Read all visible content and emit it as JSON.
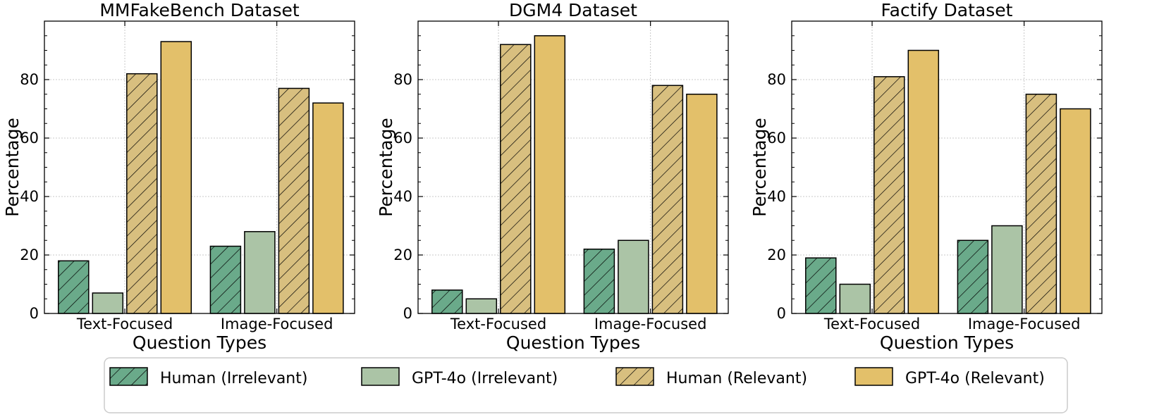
{
  "chart_data": [
    {
      "type": "bar",
      "title": "MMFakeBench Dataset",
      "xlabel": "Question Types",
      "ylabel": "Percentage",
      "categories": [
        "Text-Focused",
        "Image-Focused"
      ],
      "ylim": [
        0,
        100
      ],
      "yticks": [
        "0",
        "20",
        "40",
        "60",
        "80"
      ],
      "series": [
        {
          "name": "Human (Irrelevant)",
          "values": [
            18,
            23
          ]
        },
        {
          "name": "GPT-4o (Irrelevant)",
          "values": [
            7,
            28
          ]
        },
        {
          "name": "Human (Relevant)",
          "values": [
            82,
            77
          ]
        },
        {
          "name": "GPT-4o (Relevant)",
          "values": [
            93,
            72
          ]
        }
      ]
    },
    {
      "type": "bar",
      "title": "DGM4 Dataset",
      "xlabel": "Question Types",
      "ylabel": "Percentage",
      "categories": [
        "Text-Focused",
        "Image-Focused"
      ],
      "ylim": [
        0,
        100
      ],
      "yticks": [
        "0",
        "20",
        "40",
        "60",
        "80"
      ],
      "series": [
        {
          "name": "Human (Irrelevant)",
          "values": [
            8,
            22
          ]
        },
        {
          "name": "GPT-4o (Irrelevant)",
          "values": [
            5,
            25
          ]
        },
        {
          "name": "Human (Relevant)",
          "values": [
            92,
            78
          ]
        },
        {
          "name": "GPT-4o (Relevant)",
          "values": [
            95,
            75
          ]
        }
      ]
    },
    {
      "type": "bar",
      "title": "Factify Dataset",
      "xlabel": "Question Types",
      "ylabel": "Percentage",
      "categories": [
        "Text-Focused",
        "Image-Focused"
      ],
      "ylim": [
        0,
        100
      ],
      "yticks": [
        "0",
        "20",
        "40",
        "60",
        "80"
      ],
      "series": [
        {
          "name": "Human (Irrelevant)",
          "values": [
            19,
            25
          ]
        },
        {
          "name": "GPT-4o (Irrelevant)",
          "values": [
            10,
            30
          ]
        },
        {
          "name": "Human (Relevant)",
          "values": [
            81,
            75
          ]
        },
        {
          "name": "GPT-4o (Relevant)",
          "values": [
            90,
            70
          ]
        }
      ]
    }
  ],
  "legend": {
    "position": "bottom-center",
    "entries": [
      {
        "label": "Human (Irrelevant)",
        "color": "#6aaa8a",
        "hatch": true
      },
      {
        "label": "GPT-4o (Irrelevant)",
        "color": "#abc4a6",
        "hatch": false
      },
      {
        "label": "Human (Relevant)",
        "color": "#d8bf7f",
        "hatch": true
      },
      {
        "label": "GPT-4o (Relevant)",
        "color": "#e3c06a",
        "hatch": false
      }
    ]
  },
  "colors": {
    "series": [
      "#6aaa8a",
      "#abc4a6",
      "#d8bf7f",
      "#e3c06a"
    ],
    "grid": "#c8c8c8",
    "edge": "#000000"
  }
}
